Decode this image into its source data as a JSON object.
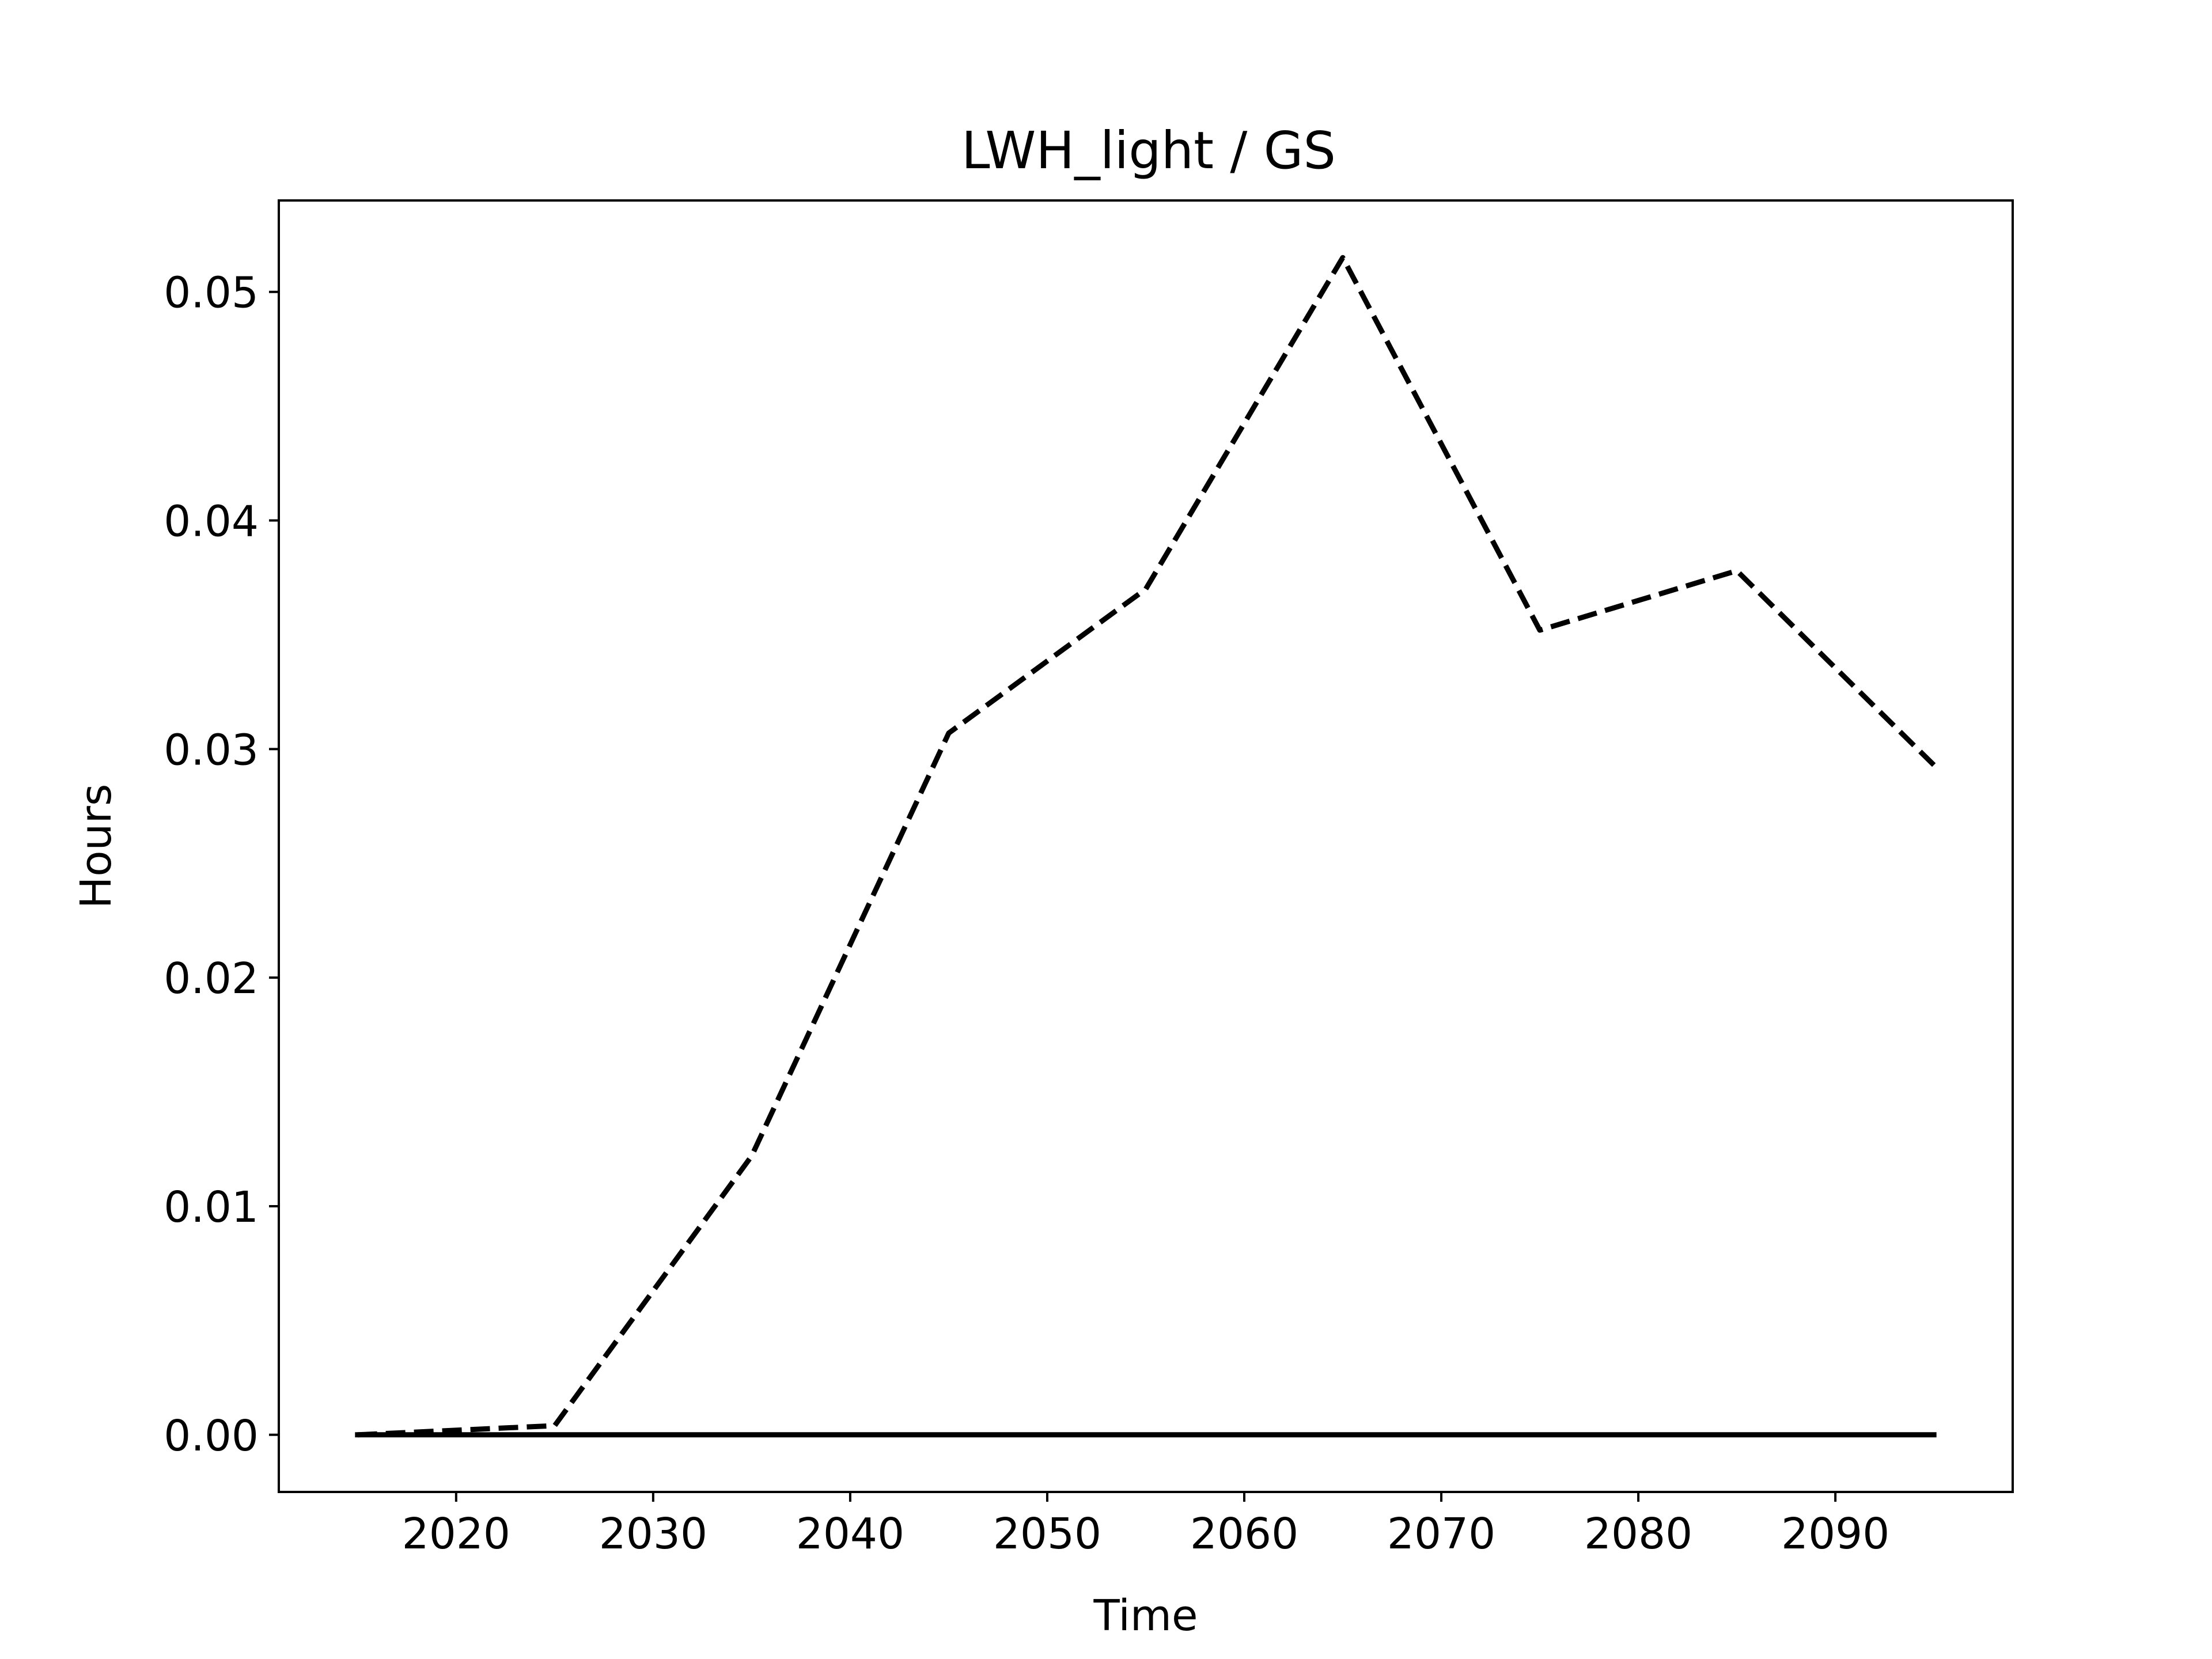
{
  "chart_data": {
    "type": "line",
    "title": "LWH_light / GS",
    "xlabel": "Time",
    "ylabel": "Hours",
    "xlim": [
      2011,
      2099
    ],
    "ylim": [
      -0.0025,
      0.054
    ],
    "xticks": [
      2020,
      2030,
      2040,
      2050,
      2060,
      2070,
      2080,
      2090
    ],
    "xtick_labels": [
      "2020",
      "2030",
      "2040",
      "2050",
      "2060",
      "2070",
      "2080",
      "2090"
    ],
    "yticks": [
      0.0,
      0.01,
      0.02,
      0.03,
      0.04,
      0.05
    ],
    "ytick_labels": [
      "0.00",
      "0.01",
      "0.02",
      "0.03",
      "0.04",
      "0.05"
    ],
    "grid": false,
    "legend": "none",
    "series": [
      {
        "style": "dashed",
        "color": "#000000",
        "x": [
          2015,
          2025,
          2035,
          2045,
          2055,
          2065,
          2075,
          2085,
          2095
        ],
        "values": [
          0.0,
          0.0004,
          0.0122,
          0.0307,
          0.037,
          0.0515,
          0.0352,
          0.0378,
          0.0293
        ]
      },
      {
        "style": "solid",
        "color": "#000000",
        "x": [
          2015,
          2025,
          2035,
          2045,
          2055,
          2065,
          2075,
          2085,
          2095
        ],
        "values": [
          0,
          0,
          0,
          0,
          0,
          0,
          0,
          0,
          0
        ]
      }
    ]
  }
}
